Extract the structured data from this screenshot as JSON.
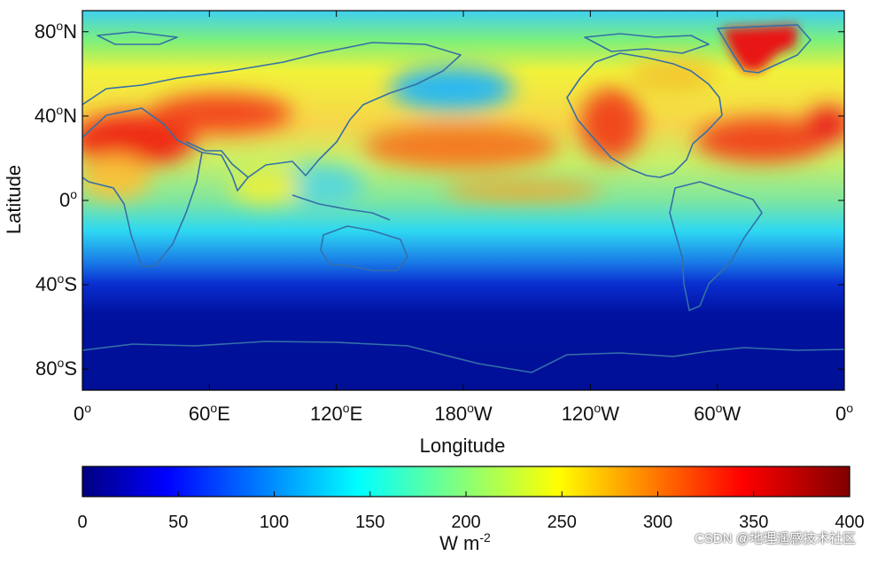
{
  "figure": {
    "xlabel": "Longitude",
    "ylabel": "Latitude",
    "x_ticks": [
      {
        "value": 0,
        "num": "0",
        "suffix": ""
      },
      {
        "value": 60,
        "num": "60",
        "suffix": "E"
      },
      {
        "value": 120,
        "num": "120",
        "suffix": "E"
      },
      {
        "value": 180,
        "num": "180",
        "suffix": "W"
      },
      {
        "value": 240,
        "num": "120",
        "suffix": "W"
      },
      {
        "value": 300,
        "num": "60",
        "suffix": "W"
      },
      {
        "value": 360,
        "num": "0",
        "suffix": ""
      }
    ],
    "y_ticks": [
      {
        "value": 80,
        "num": "80",
        "suffix": "N"
      },
      {
        "value": 40,
        "num": "40",
        "suffix": "N"
      },
      {
        "value": 0,
        "num": "0",
        "suffix": ""
      },
      {
        "value": -40,
        "num": "40",
        "suffix": "S"
      },
      {
        "value": -80,
        "num": "80",
        "suffix": "S"
      }
    ],
    "degree_symbol": "o",
    "colorbar": {
      "label_base": "W m",
      "label_exp": "-2",
      "ticks": [
        "0",
        "50",
        "100",
        "150",
        "200",
        "250",
        "300",
        "350",
        "400"
      ],
      "range": [
        0,
        400
      ],
      "colormap": "jet"
    },
    "watermark": "CSDN @地理遥感技术社区"
  }
}
